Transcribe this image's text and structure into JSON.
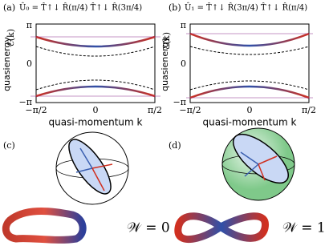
{
  "panels": [
    {
      "label": "(a)",
      "operator": "Û₀ = T̂↑↓ R̂(π/4) T̂↑↓ R̂(3π/4)",
      "y_label": "quasienergy",
      "y_symbol": "ℰ(k)",
      "y_ticks": [
        "π",
        "0",
        "−π"
      ],
      "x_ticks": [
        "−π/2",
        "0",
        "π/2"
      ],
      "x_label": "quasi-momentum k"
    },
    {
      "label": "(b)",
      "operator": "Û₁ = T̂↑↓ R̂(3π/4) T̂↑↓ R̂(π/4)",
      "y_label": "quasienergy",
      "y_symbol": "ℰ(k)",
      "y_ticks": [
        "π",
        "0",
        "−π"
      ],
      "x_ticks": [
        "−π/2",
        "0",
        "π/2"
      ],
      "x_label": "quasi-momentum k"
    },
    {
      "label": "(c)",
      "winding": "𝒲 = 0"
    },
    {
      "label": "(d)",
      "winding": "𝒲 = 1"
    }
  ]
}
